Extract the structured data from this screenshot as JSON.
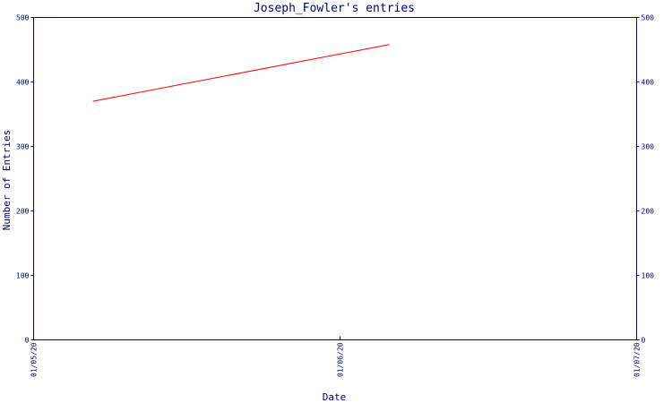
{
  "chart_data": {
    "type": "line",
    "title": "Joseph_Fowler's entries",
    "xlabel": "Date",
    "ylabel": "Number of Entries",
    "x_ticks": [
      "01/05/20",
      "01/06/20",
      "01/07/20"
    ],
    "y_ticks": [
      "0",
      "100",
      "200",
      "300",
      "400",
      "500"
    ],
    "xlim": [
      "2020-05-01",
      "2020-07-01"
    ],
    "ylim": [
      0,
      500
    ],
    "grid": false,
    "series": [
      {
        "x": [
          "2020-05-07",
          "2020-06-06"
        ],
        "y": [
          370,
          458
        ],
        "color": "#ff0000"
      }
    ],
    "axis_color": "#000080"
  }
}
